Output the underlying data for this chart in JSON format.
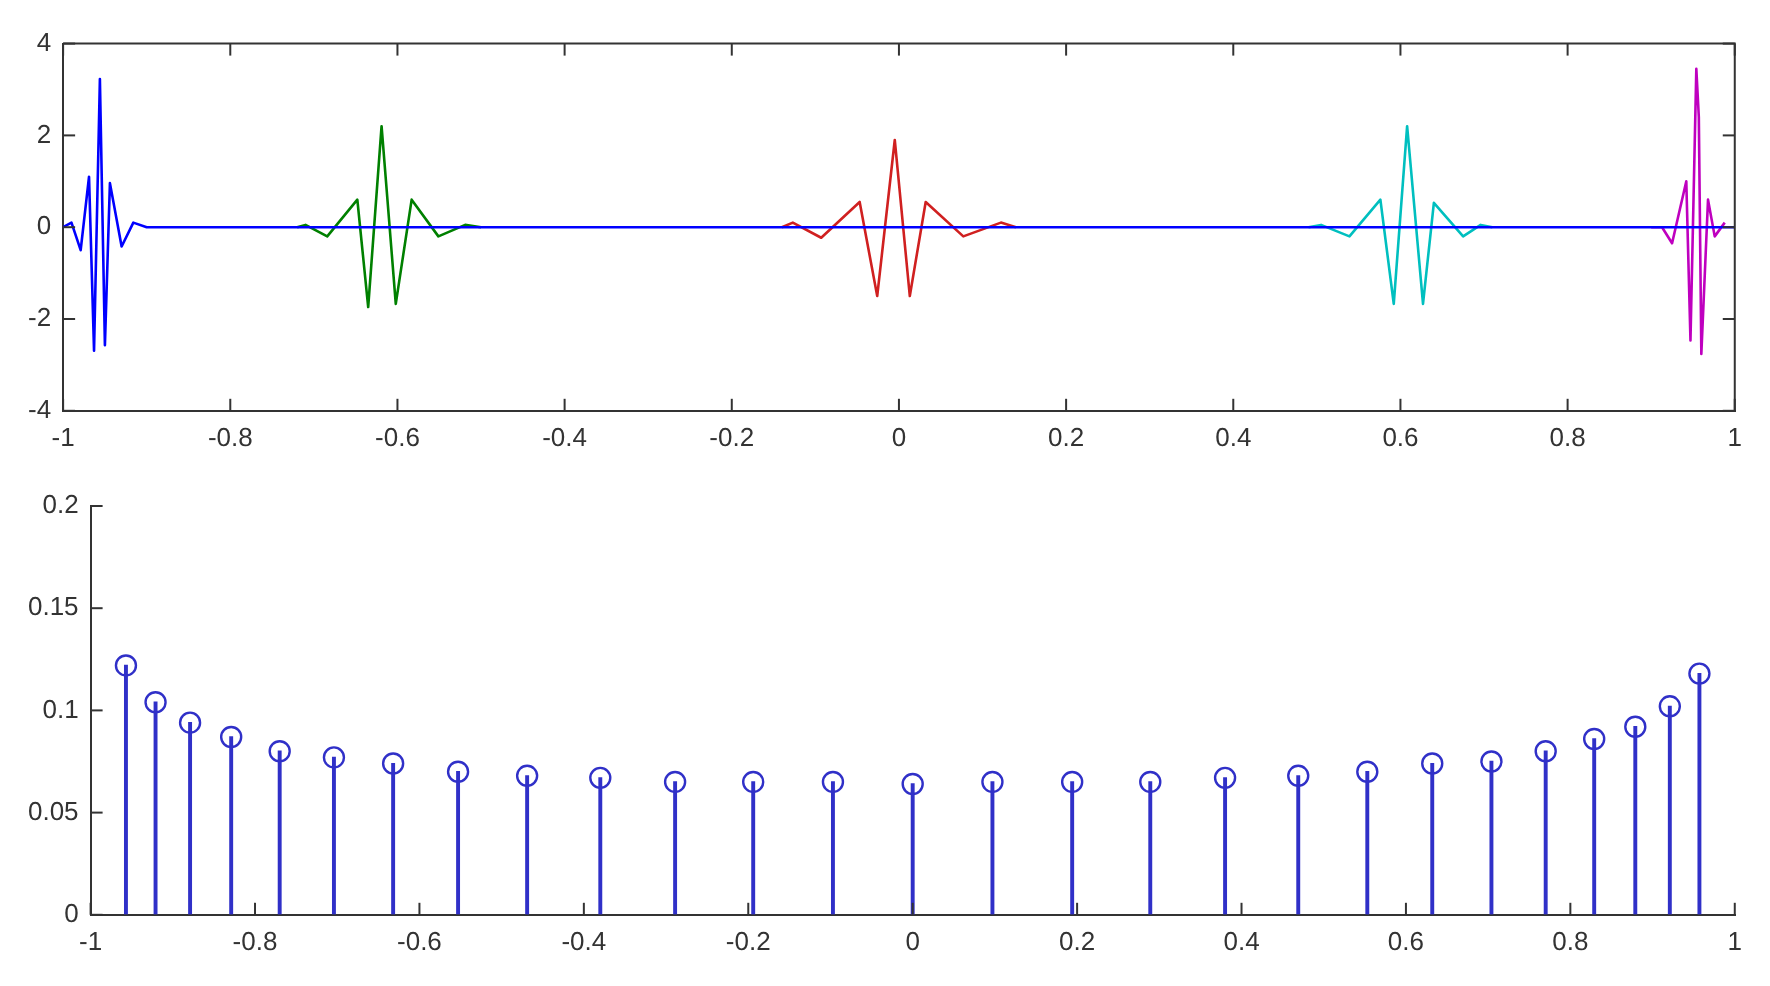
{
  "chart_data": [
    {
      "type": "line",
      "xlim": [
        -1,
        1
      ],
      "xticks": [
        -1,
        -0.8,
        -0.6,
        -0.4,
        -0.2,
        0,
        0.2,
        0.4,
        0.6,
        0.8,
        1
      ],
      "ylim": [
        -4,
        4
      ],
      "yticks": [
        -4,
        -2,
        0,
        2,
        4
      ],
      "grid": false,
      "legend": false,
      "marker": "none",
      "line_style": "solid",
      "series": [
        {
          "color": "#0000ff",
          "x": [
            -1,
            -0.99,
            -0.979,
            -0.969,
            -0.963,
            -0.956,
            -0.95,
            -0.944,
            -0.93,
            -0.916,
            -0.9,
            1
          ],
          "values": [
            0,
            0.1,
            -0.5,
            1.1,
            -2.69,
            3.23,
            -2.57,
            0.96,
            -0.42,
            0.1,
            0,
            0
          ]
        },
        {
          "color": "#008000",
          "x": [
            -0.72,
            -0.71,
            -0.684,
            -0.648,
            -0.635,
            -0.619,
            -0.602,
            -0.583,
            -0.551,
            -0.519,
            -0.5
          ],
          "values": [
            0,
            0.05,
            -0.2,
            0.6,
            -1.74,
            2.2,
            -1.67,
            0.6,
            -0.2,
            0.05,
            0
          ]
        },
        {
          "color": "#d02020",
          "x": [
            -0.14,
            -0.127,
            -0.093,
            -0.047,
            -0.026,
            -0.005,
            0.013,
            0.032,
            0.077,
            0.122,
            0.14
          ],
          "values": [
            0,
            0.1,
            -0.23,
            0.55,
            -1.5,
            1.9,
            -1.5,
            0.55,
            -0.2,
            0.1,
            0
          ]
        },
        {
          "color": "#00bfbf",
          "x": [
            0.49,
            0.505,
            0.539,
            0.576,
            0.592,
            0.608,
            0.627,
            0.64,
            0.675,
            0.696,
            0.71
          ],
          "values": [
            0,
            0.05,
            -0.2,
            0.6,
            -1.67,
            2.2,
            -1.67,
            0.53,
            -0.2,
            0.05,
            0
          ]
        },
        {
          "color": "#bf00bf",
          "x": [
            0.9,
            0.913,
            0.925,
            0.942,
            0.947,
            0.954,
            0.957,
            0.96,
            0.968,
            0.976,
            0.988
          ],
          "values": [
            0,
            0,
            -0.35,
            1,
            -2.47,
            3.45,
            2.4,
            -2.76,
            0.6,
            -0.2,
            0.1
          ]
        }
      ]
    },
    {
      "type": "lollipop",
      "xlim": [
        -1,
        1
      ],
      "xticks": [
        -1,
        -0.8,
        -0.6,
        -0.4,
        -0.2,
        0,
        0.2,
        0.4,
        0.6,
        0.8,
        1
      ],
      "ylim": [
        0,
        0.2
      ],
      "yticks": [
        0,
        0.05,
        0.1,
        0.15,
        0.2
      ],
      "grid": false,
      "legend": false,
      "marker": "circle",
      "color": "#3030c8",
      "x": [
        -0.957,
        -0.921,
        -0.879,
        -0.829,
        -0.77,
        -0.704,
        -0.632,
        -0.553,
        -0.469,
        -0.38,
        -0.289,
        -0.194,
        -0.097,
        0,
        0.097,
        0.194,
        0.289,
        0.38,
        0.469,
        0.553,
        0.632,
        0.704,
        0.77,
        0.829,
        0.879,
        0.921,
        0.957
      ],
      "values": [
        0.122,
        0.104,
        0.094,
        0.087,
        0.08,
        0.077,
        0.074,
        0.07,
        0.068,
        0.067,
        0.065,
        0.065,
        0.065,
        0.064,
        0.065,
        0.065,
        0.065,
        0.067,
        0.068,
        0.07,
        0.074,
        0.075,
        0.08,
        0.086,
        0.092,
        0.102,
        0.118
      ]
    }
  ]
}
